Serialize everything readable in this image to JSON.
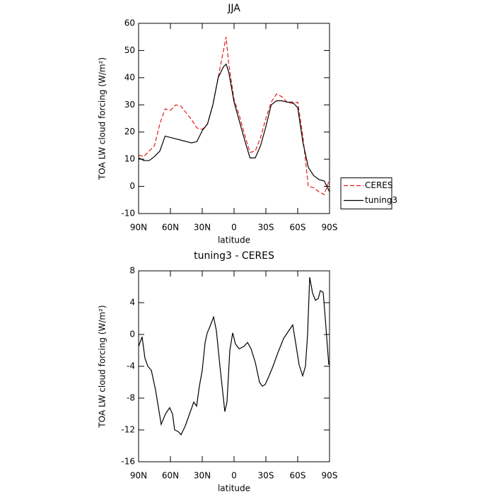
{
  "chart_data": [
    {
      "type": "line",
      "title": "JJA",
      "xlabel": "latitude",
      "ylabel": "TOA LW cloud forcing (W/m²)",
      "x": [
        90,
        85,
        80,
        75,
        70,
        65,
        60,
        55,
        50,
        45,
        40,
        35,
        30,
        25,
        20,
        15,
        10,
        7.5,
        5,
        0,
        -5,
        -10,
        -15,
        -20,
        -25,
        -30,
        -35,
        -40,
        -45,
        -50,
        -55,
        -60,
        -65,
        -70,
        -75,
        -80,
        -85,
        -90
      ],
      "series": [
        {
          "name": "CERES",
          "color": "#e41a1c",
          "linestyle": "dashed",
          "values": [
            11.5,
            11,
            13,
            15,
            23,
            28.5,
            28,
            30,
            29.5,
            27,
            24.5,
            21.5,
            21,
            23,
            30,
            40,
            50,
            55,
            45,
            32,
            26,
            19,
            12.5,
            13,
            18,
            25,
            31,
            34,
            33,
            31,
            30.5,
            31,
            18,
            0,
            -0.5,
            -2,
            -3,
            2.5
          ]
        },
        {
          "name": "tuning3",
          "color": "#000000",
          "linestyle": "solid",
          "values": [
            10.5,
            9.5,
            9.5,
            11,
            13,
            18.5,
            18,
            17.5,
            17,
            16.5,
            16,
            16.5,
            20.5,
            23,
            30,
            40,
            44,
            45,
            42,
            31,
            24,
            17,
            10.5,
            10.5,
            15,
            22,
            30,
            31.5,
            31.5,
            31,
            31,
            29,
            16,
            7,
            4,
            2.5,
            2,
            -2
          ]
        }
      ],
      "xlim": [
        90,
        -90
      ],
      "xticks": [
        {
          "value": 90,
          "label": "90N"
        },
        {
          "value": 60,
          "label": "60N"
        },
        {
          "value": 30,
          "label": "30N"
        },
        0,
        {
          "value": -30,
          "label": "30S"
        },
        {
          "value": -60,
          "label": "60S"
        },
        {
          "value": -90,
          "label": "90S"
        }
      ],
      "ylim": [
        -10,
        60
      ],
      "yticks": [
        -10,
        0,
        10,
        20,
        30,
        40,
        50,
        60
      ],
      "legend": "right"
    },
    {
      "type": "line",
      "title": "tuning3 - CERES",
      "xlabel": "latitude",
      "ylabel": "TOA LW cloud forcing (W/m²)",
      "x": [
        90,
        86.7,
        84,
        81.3,
        78,
        74,
        68.7,
        64.7,
        60.7,
        58,
        56,
        52.7,
        50,
        46,
        42,
        38,
        35.3,
        32.7,
        30,
        27.3,
        25.3,
        22.7,
        19.3,
        16.7,
        13.3,
        8.7,
        6.7,
        4,
        1.3,
        -1.3,
        -4.7,
        -9.3,
        -12.7,
        -16,
        -20,
        -24,
        -26.7,
        -29.3,
        -32.7,
        -36.7,
        -41.3,
        -46.7,
        -50.7,
        -55.3,
        -58,
        -61.3,
        -64.7,
        -67.3,
        -69.3,
        -71.3,
        -74,
        -76.7,
        -79.3,
        -81.3,
        -84,
        -86,
        -89.3
      ],
      "series": [
        {
          "color": "#000000",
          "linestyle": "solid",
          "values": [
            -1.5,
            -0.3,
            -3,
            -4,
            -4.5,
            -7,
            -11.3,
            -10,
            -9.2,
            -10,
            -12,
            -12.2,
            -12.6,
            -11.5,
            -10,
            -8.5,
            -9,
            -6.5,
            -4.5,
            -1,
            0.2,
            1,
            2.2,
            0.5,
            -4,
            -9.7,
            -8.5,
            -2,
            0.2,
            -1.2,
            -1.8,
            -1.5,
            -1,
            -1.8,
            -3.5,
            -6,
            -6.5,
            -6.3,
            -5.3,
            -4,
            -2.3,
            -0.5,
            0.3,
            1.2,
            -1,
            -3.8,
            -5.2,
            -4,
            0,
            7.2,
            5.2,
            4.3,
            4.5,
            5.5,
            5.3,
            2,
            -3.8
          ]
        }
      ],
      "xlim": [
        90,
        -90
      ],
      "xticks": [
        {
          "value": 90,
          "label": "90N"
        },
        {
          "value": 60,
          "label": "60N"
        },
        {
          "value": 30,
          "label": "30N"
        },
        0,
        {
          "value": -30,
          "label": "30S"
        },
        {
          "value": -60,
          "label": "60S"
        },
        {
          "value": -90,
          "label": "90S"
        }
      ],
      "ylim": [
        -16,
        8
      ],
      "yticks": [
        -16,
        -12,
        -8,
        -4,
        0,
        4,
        8
      ]
    }
  ]
}
